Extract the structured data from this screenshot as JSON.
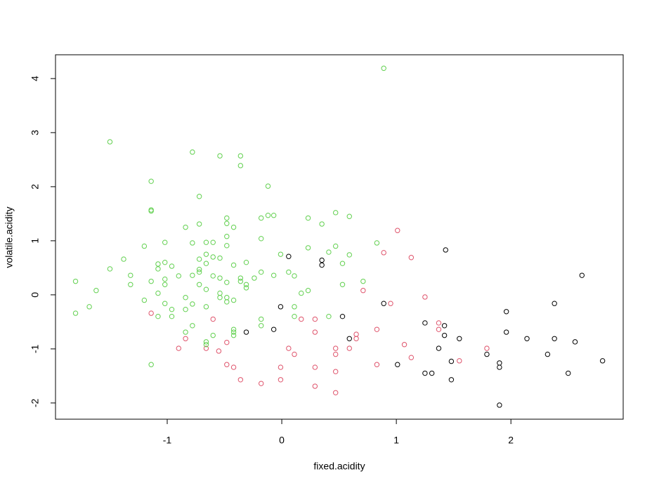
{
  "chart_data": {
    "type": "scatter",
    "x_label": "fixed.acidity",
    "y_label": "volatile.acidity",
    "xlim": [
      -1.975,
      2.98
    ],
    "ylim": [
      -2.3,
      4.44
    ],
    "xticks": [
      -1,
      0,
      1,
      2
    ],
    "yticks": [
      -2,
      -1,
      0,
      1,
      2,
      3,
      4
    ],
    "grid": false,
    "series": [
      {
        "color": "#000000",
        "x": [
          0.06,
          0.35,
          0.35,
          1.43,
          2.62,
          -0.31,
          -0.07,
          -0.01,
          0.53,
          0.59,
          0.89,
          1.01,
          1.25,
          1.42,
          1.42,
          1.37,
          1.55,
          1.25,
          1.31,
          1.48,
          1.48,
          1.79,
          1.9,
          1.9,
          1.96,
          1.96,
          2.14,
          2.38,
          2.38,
          2.32,
          2.5,
          2.56,
          2.8,
          1.9
        ],
        "values": [
          0.71,
          0.64,
          0.55,
          0.83,
          0.36,
          -0.69,
          -0.64,
          -0.22,
          -0.4,
          -0.81,
          -0.16,
          -1.29,
          -0.52,
          -0.57,
          -0.75,
          -0.99,
          -0.81,
          -1.45,
          -1.45,
          -1.23,
          -1.57,
          -1.1,
          -1.26,
          -1.34,
          -0.31,
          -0.69,
          -0.81,
          -0.16,
          -0.81,
          -1.1,
          -1.45,
          -0.87,
          -1.22,
          -2.04
        ]
      },
      {
        "color": "#DF536B",
        "x": [
          1.01,
          1.13,
          0.89,
          0.71,
          0.95,
          1.25,
          1.37,
          1.37,
          1.07,
          1.13,
          0.83,
          0.83,
          0.65,
          0.65,
          0.29,
          0.29,
          0.17,
          0.06,
          0.11,
          -0.01,
          -0.01,
          -0.18,
          -0.36,
          0.29,
          0.29,
          0.47,
          0.47,
          0.47,
          0.47,
          -0.48,
          -0.42,
          -0.48,
          -0.6,
          -0.66,
          -0.84,
          -0.9,
          -1.14,
          -0.55,
          0.59,
          1.79,
          1.55
        ],
        "values": [
          1.19,
          0.69,
          0.78,
          0.08,
          -0.16,
          -0.04,
          -0.52,
          -0.64,
          -0.92,
          -1.16,
          -0.64,
          -1.29,
          -0.81,
          -0.73,
          -0.45,
          -0.69,
          -0.45,
          -0.99,
          -1.1,
          -1.34,
          -1.57,
          -1.64,
          -1.57,
          -1.34,
          -1.69,
          -0.99,
          -1.1,
          -1.42,
          -1.81,
          -0.88,
          -1.34,
          -1.29,
          -0.45,
          -0.99,
          -0.81,
          -0.99,
          -0.34,
          -1.04,
          -0.99,
          -0.99,
          -1.22
        ]
      },
      {
        "color": "#61D04F",
        "x": [
          0.89,
          -1.5,
          -0.78,
          -0.54,
          -0.36,
          -0.36,
          -1.14,
          -0.12,
          -0.72,
          -1.14,
          -1.14,
          0.47,
          0.59,
          -0.48,
          -0.18,
          -0.12,
          -0.07,
          0.23,
          -0.48,
          -0.72,
          0.35,
          -0.84,
          -0.42,
          -0.48,
          -0.18,
          -1.02,
          -0.78,
          -0.66,
          -0.6,
          0.83,
          -0.48,
          -1.2,
          0.23,
          0.47,
          -0.01,
          -0.66,
          0.59,
          0.41,
          -0.6,
          -0.72,
          -1.38,
          -0.54,
          -0.66,
          -1.08,
          -1.02,
          -0.96,
          -0.31,
          -1.5,
          -1.08,
          -0.72,
          -0.42,
          0.53,
          0.06,
          -0.18,
          -0.72,
          -0.9,
          -0.78,
          -1.32,
          -0.36,
          -0.54,
          -1.02,
          -0.6,
          -0.07,
          0.11,
          -0.24,
          -1.8,
          0.71,
          -1.14,
          -1.32,
          -1.02,
          -0.72,
          -0.48,
          -0.36,
          -0.31,
          -0.31,
          0.53,
          -0.66,
          -1.62,
          0.17,
          0.23,
          -1.08,
          -0.54,
          -0.54,
          -0.48,
          -0.84,
          -0.42,
          -0.48,
          -1.2,
          -1.02,
          -0.78,
          -1.68,
          -0.66,
          0.11,
          -0.96,
          -0.84,
          -1.8,
          -1.08,
          -0.96,
          0.11,
          0.41,
          -0.18,
          -0.18,
          -0.78,
          -0.42,
          -0.42,
          -0.84,
          -0.6,
          -0.42,
          -0.66,
          -0.66,
          -1.14
        ],
        "values": [
          4.19,
          2.83,
          2.64,
          2.57,
          2.57,
          2.39,
          2.1,
          2.01,
          1.82,
          1.57,
          1.55,
          1.52,
          1.45,
          1.42,
          1.42,
          1.47,
          1.47,
          1.42,
          1.32,
          1.31,
          1.31,
          1.25,
          1.25,
          1.08,
          1.04,
          0.97,
          0.96,
          0.97,
          0.97,
          0.96,
          0.91,
          0.9,
          0.87,
          0.9,
          0.75,
          0.75,
          0.74,
          0.79,
          0.7,
          0.66,
          0.66,
          0.68,
          0.58,
          0.57,
          0.6,
          0.53,
          0.6,
          0.48,
          0.48,
          0.47,
          0.55,
          0.58,
          0.42,
          0.42,
          0.42,
          0.35,
          0.36,
          0.36,
          0.31,
          0.31,
          0.29,
          0.35,
          0.36,
          0.35,
          0.31,
          0.25,
          0.25,
          0.25,
          0.19,
          0.19,
          0.19,
          0.23,
          0.25,
          0.19,
          0.13,
          0.19,
          0.1,
          0.08,
          0.03,
          0.08,
          0.03,
          0.03,
          -0.05,
          -0.05,
          -0.05,
          -0.1,
          -0.13,
          -0.1,
          -0.16,
          -0.17,
          -0.22,
          -0.22,
          -0.22,
          -0.27,
          -0.27,
          -0.34,
          -0.4,
          -0.4,
          -0.4,
          -0.4,
          -0.45,
          -0.57,
          -0.57,
          -0.64,
          -0.69,
          -0.69,
          -0.75,
          -0.75,
          -0.87,
          -0.92,
          -1.29
        ]
      }
    ]
  }
}
